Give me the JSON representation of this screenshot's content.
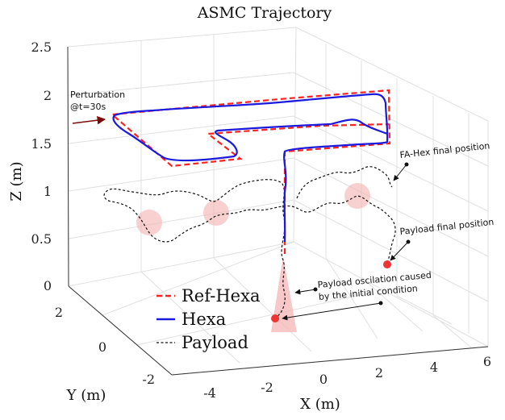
{
  "chart_data": {
    "type": "line",
    "title": "ASMC Trajectory",
    "xlabel": "X (m)",
    "ylabel": "Y (m)",
    "zlabel": "Z (m)",
    "xlim": [
      -5,
      6
    ],
    "ylim": [
      -3,
      3
    ],
    "zlim": [
      0,
      2.5
    ],
    "x_ticks": [
      "-4",
      "-2",
      "0",
      "2",
      "4",
      "6"
    ],
    "y_ticks": [
      "-2",
      "0",
      "2"
    ],
    "z_ticks": [
      "0",
      "0.5",
      "1",
      "1.5",
      "2",
      "2.5"
    ],
    "grid": true,
    "view": "3d",
    "legend_position": "bottom-left",
    "legend": [
      "Ref-Hexa",
      "Hexa",
      "Payload"
    ],
    "colors": {
      "ref": "#ff2020",
      "hexa": "#1a1adf",
      "payload": "#111111",
      "marker": "#ee3333",
      "circle": "#f4b0b0",
      "perturb": "#7a0b0b"
    },
    "series": [
      {
        "name": "Ref-Hexa",
        "style": "dashed",
        "points": [
          [
            -1.8,
            -2.2,
            0.05
          ],
          [
            -1.8,
            -2.2,
            0.6
          ],
          [
            -1.8,
            -2.2,
            1.6
          ],
          [
            0,
            -2.2,
            1.6
          ],
          [
            2,
            -2.2,
            1.6
          ],
          [
            3.5,
            -2.2,
            1.6
          ],
          [
            3.5,
            -2.2,
            2.0
          ],
          [
            3.5,
            0,
            2.0
          ],
          [
            3.5,
            2.0,
            2.0
          ],
          [
            1,
            2.0,
            2.0
          ],
          [
            -1,
            2.0,
            2.0
          ],
          [
            -3,
            2.0,
            2.0
          ],
          [
            -3,
            0.2,
            2.0
          ],
          [
            -3,
            -1.5,
            2.0
          ],
          [
            -1,
            -1.5,
            2.0
          ],
          [
            -1,
            0,
            2.0
          ],
          [
            1,
            0,
            2.0
          ],
          [
            2,
            0,
            2.0
          ]
        ]
      },
      {
        "name": "Hexa",
        "style": "solid",
        "points": [
          [
            -1.8,
            -2.2,
            0.05
          ],
          [
            -1.8,
            -2.2,
            0.6
          ],
          [
            -1.8,
            -2.2,
            1.6
          ],
          [
            0,
            -2.2,
            1.6
          ],
          [
            2,
            -2.2,
            1.6
          ],
          [
            3.5,
            -2.2,
            1.6
          ],
          [
            3.5,
            -2.2,
            2.0
          ],
          [
            3.5,
            0,
            2.0
          ],
          [
            3.5,
            2.0,
            2.0
          ],
          [
            1,
            2.0,
            2.0
          ],
          [
            -1,
            2.0,
            2.0
          ],
          [
            -3,
            2.0,
            2.0
          ],
          [
            -3,
            0.2,
            2.0
          ],
          [
            -3,
            -1.5,
            2.0
          ],
          [
            -1,
            -1.5,
            2.0
          ],
          [
            -1,
            0,
            2.0
          ],
          [
            1,
            0,
            2.0
          ],
          [
            2,
            0,
            2.0
          ]
        ]
      },
      {
        "name": "Payload",
        "style": "dashed",
        "points": []
      }
    ],
    "annotations": [
      {
        "id": "perturbation",
        "text_lines": [
          "Perturbation",
          "@t=30s"
        ]
      },
      {
        "id": "hex_final",
        "text_lines": [
          "FA-Hex final position"
        ]
      },
      {
        "id": "payload_final",
        "text_lines": [
          "Payload final position"
        ]
      },
      {
        "id": "oscillation",
        "text_lines": [
          "Payload oscilation caused",
          "by the initial condition"
        ]
      }
    ]
  }
}
